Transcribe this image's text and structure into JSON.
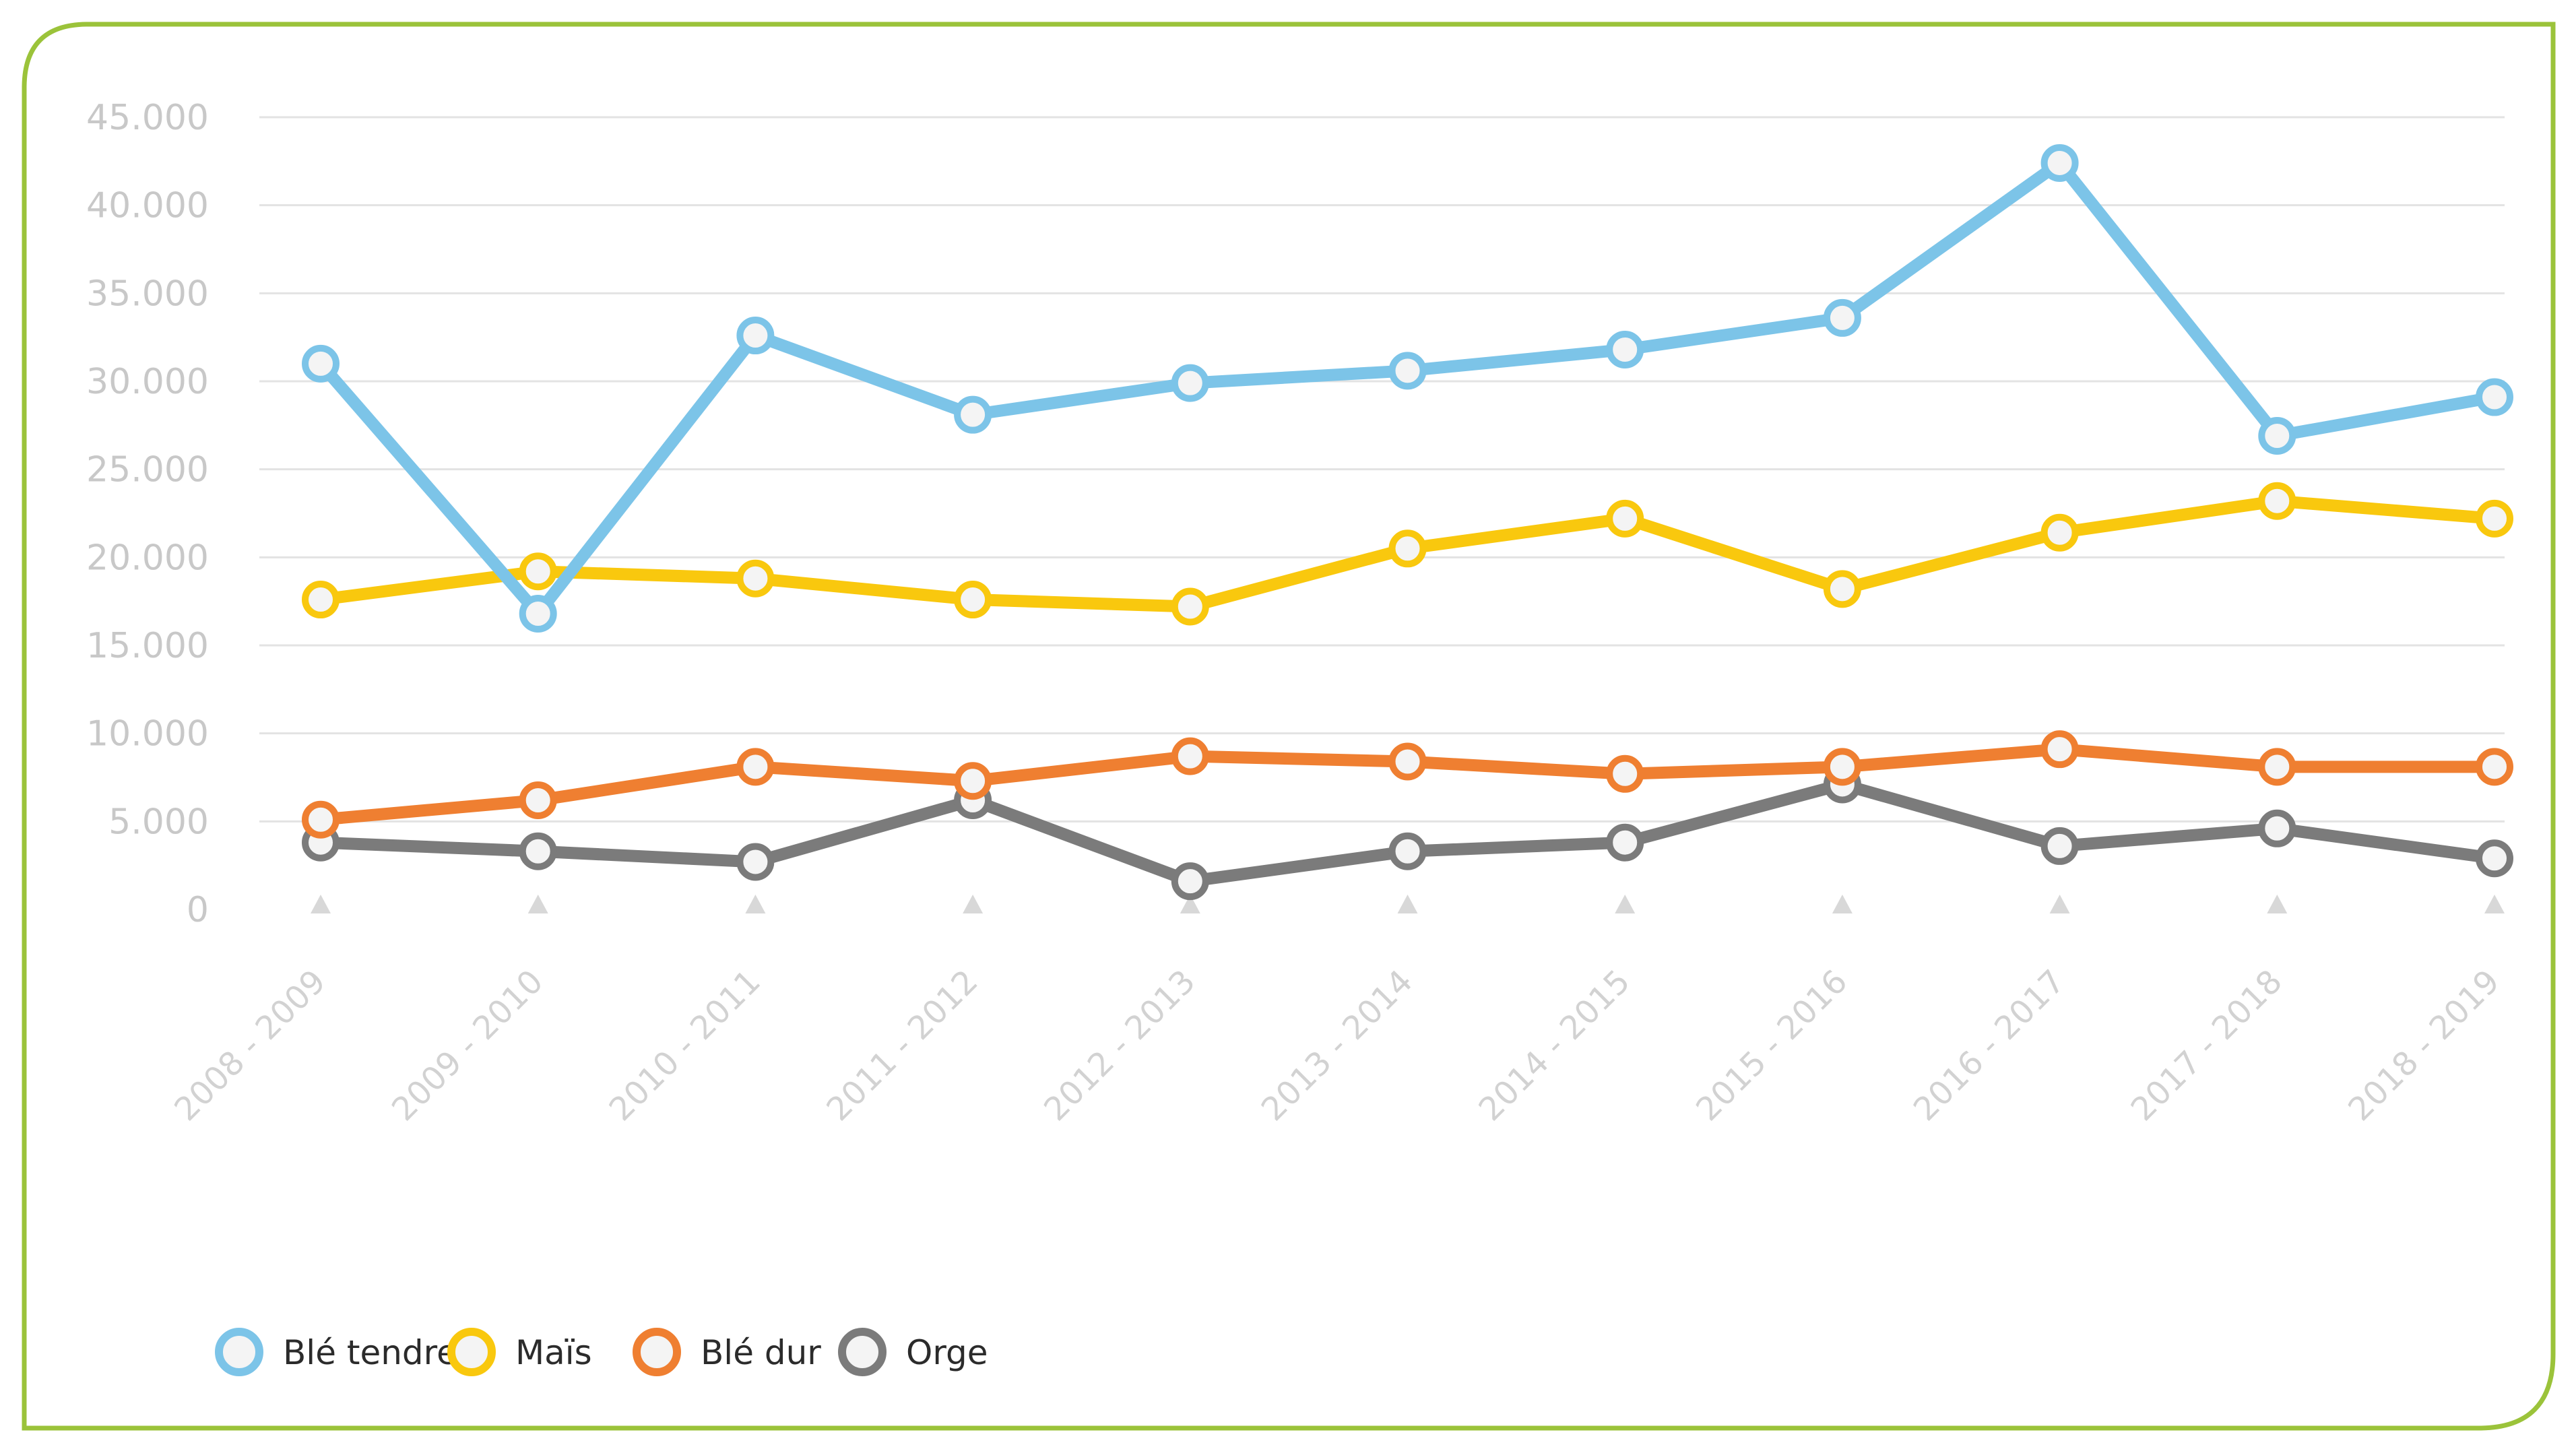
{
  "chart_data": {
    "type": "line",
    "title": "",
    "xlabel": "",
    "ylabel": "",
    "categories": [
      "2008 - 2009",
      "2009 - 2010",
      "2010 - 2011",
      "2011 - 2012",
      "2012 - 2013",
      "2013 - 2014",
      "2014 - 2015",
      "2015 - 2016",
      "2016 - 2017",
      "2017 - 2018",
      "2018 - 2019"
    ],
    "ylim": [
      0,
      45000
    ],
    "yticks": [
      0,
      5000,
      10000,
      15000,
      20000,
      25000,
      30000,
      35000,
      40000,
      45000
    ],
    "ytick_labels": [
      "0",
      "5.000",
      "10.000",
      "15.000",
      "20.000",
      "25.000",
      "30.000",
      "35.000",
      "40.000",
      "45.000"
    ],
    "grid": true,
    "legend_position": "bottom-left",
    "series": [
      {
        "name": "Blé tendre",
        "color": "#7cc4e8",
        "values": [
          31000,
          16800,
          32600,
          28100,
          29900,
          30600,
          31800,
          33600,
          42400,
          26900,
          29100
        ]
      },
      {
        "name": "Maïs",
        "color": "#f9c80e",
        "values": [
          17600,
          19200,
          18800,
          17600,
          17200,
          20500,
          22200,
          18200,
          21400,
          23200,
          22200
        ]
      },
      {
        "name": "Blé dur",
        "color": "#ef7f31",
        "values": [
          5100,
          6200,
          8100,
          7300,
          8700,
          8400,
          7700,
          8100,
          9100,
          8100,
          8100
        ]
      },
      {
        "name": "Orge",
        "color": "#7b7b7b",
        "values": [
          3800,
          3300,
          2700,
          6200,
          1600,
          3300,
          3800,
          7100,
          3600,
          4600,
          2900
        ]
      }
    ]
  },
  "frame": {
    "border_color": "#9bc33a"
  }
}
